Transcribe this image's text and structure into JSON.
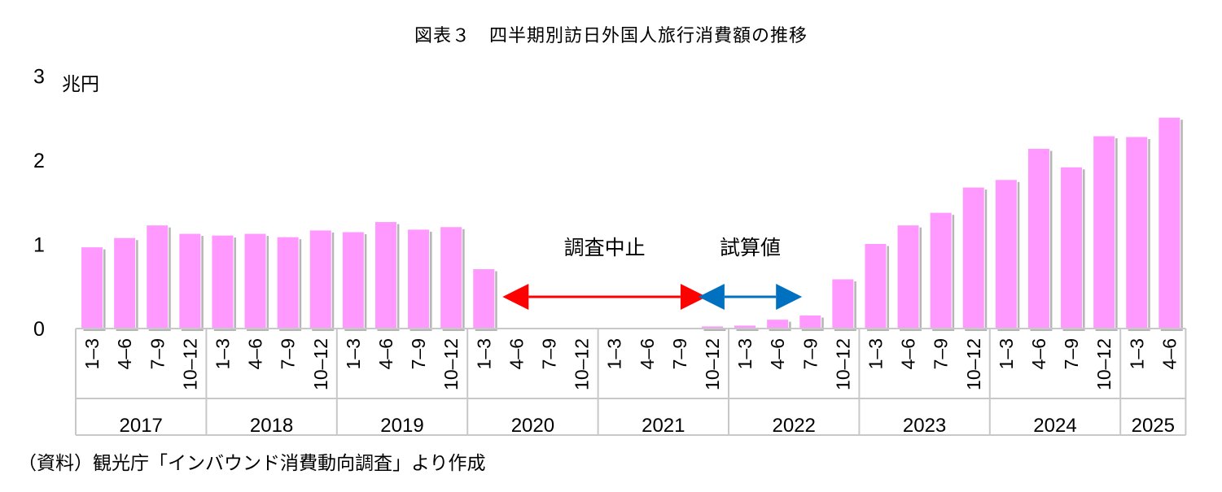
{
  "header": {
    "title": "図表３　四半期別訪日外国人旅行消費額の推移"
  },
  "footer": {
    "source": "（資料）観光庁「インバウンド消費動向調査」より作成"
  },
  "chart_data": {
    "type": "bar",
    "title": "図表３　四半期別訪日外国人旅行消費額の推移",
    "ylabel": "兆円",
    "ylim": [
      0,
      3
    ],
    "yticks": [
      "0",
      "1",
      "2",
      "3"
    ],
    "grid": false,
    "bar_color": "#ff99ff",
    "categories": [
      "1-3",
      "4-6",
      "7-9",
      "10-12",
      "1-3",
      "4-6",
      "7-9",
      "10-12",
      "1-3",
      "4-6",
      "7-9",
      "10-12",
      "1-3",
      "4-6",
      "7-9",
      "10-12",
      "1-3",
      "4-6",
      "7-9",
      "10-12",
      "1-3",
      "4-6",
      "7-9",
      "10-12",
      "1-3",
      "4-6",
      "7-9",
      "10-12",
      "1-3",
      "4-6",
      "7-9",
      "10-12",
      "1-3",
      "4-6"
    ],
    "years": [
      {
        "label": "2017",
        "quarters": 4
      },
      {
        "label": "2018",
        "quarters": 4
      },
      {
        "label": "2019",
        "quarters": 4
      },
      {
        "label": "2020",
        "quarters": 4
      },
      {
        "label": "2021",
        "quarters": 4
      },
      {
        "label": "2022",
        "quarters": 4
      },
      {
        "label": "2023",
        "quarters": 4
      },
      {
        "label": "2024",
        "quarters": 4
      },
      {
        "label": "2025",
        "quarters": 2
      }
    ],
    "values": [
      0.97,
      1.08,
      1.23,
      1.13,
      1.11,
      1.13,
      1.09,
      1.17,
      1.15,
      1.27,
      1.18,
      1.21,
      0.71,
      null,
      null,
      null,
      null,
      null,
      null,
      0.03,
      0.04,
      0.11,
      0.16,
      0.59,
      1.01,
      1.23,
      1.38,
      1.68,
      1.77,
      2.14,
      1.92,
      2.29,
      2.28,
      2.51
    ],
    "annotations": [
      {
        "text": "調査中止",
        "from_index": 13,
        "to_index": 18,
        "color": "#ff0000"
      },
      {
        "text": "試算値",
        "from_index": 19,
        "to_index": 22,
        "color": "#0070c0"
      }
    ]
  }
}
